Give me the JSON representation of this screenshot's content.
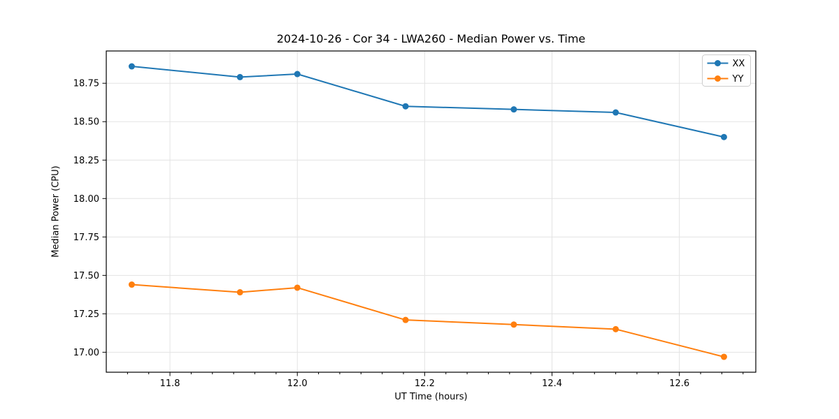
{
  "chart_data": {
    "type": "line",
    "title": "2024-10-26 - Cor 34 - LWA260 - Median Power vs. Time",
    "xlabel": "UT Time (hours)",
    "ylabel": "Median Power (CPU)",
    "xlim": [
      11.7,
      12.72
    ],
    "ylim": [
      16.87,
      18.96
    ],
    "xticks": [
      11.8,
      12.0,
      12.2,
      12.4,
      12.6
    ],
    "xtick_labels": [
      "11.8",
      "12.0",
      "12.2",
      "12.4",
      "12.6"
    ],
    "yticks": [
      17.0,
      17.25,
      17.5,
      17.75,
      18.0,
      18.25,
      18.5,
      18.75
    ],
    "ytick_labels": [
      "17.00",
      "17.25",
      "17.50",
      "17.75",
      "18.00",
      "18.25",
      "18.50",
      "18.75"
    ],
    "x_minor_divisions": 6,
    "grid": true,
    "grid_color": "#e3e3e3",
    "spine_color": "#000000",
    "legend_position": "upper right",
    "x": [
      11.74,
      11.91,
      12.0,
      12.17,
      12.34,
      12.5,
      12.67
    ],
    "series": [
      {
        "name": "XX",
        "color": "#1f77b4",
        "values": [
          18.86,
          18.79,
          18.81,
          18.6,
          18.58,
          18.56,
          18.4
        ]
      },
      {
        "name": "YY",
        "color": "#ff7f0e",
        "values": [
          17.44,
          17.39,
          17.42,
          17.21,
          17.18,
          17.15,
          16.97
        ]
      }
    ]
  }
}
